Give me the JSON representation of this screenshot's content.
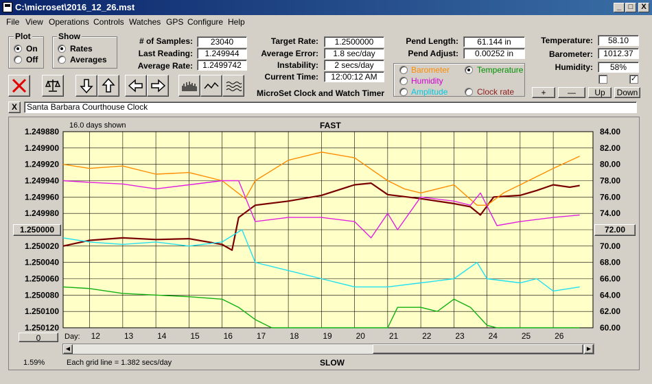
{
  "window": {
    "title": "C:\\microset\\2016_12_26.mst",
    "min_label": "_",
    "max_label": "□",
    "close_label": "X"
  },
  "menu": [
    "File",
    "View",
    "Operations",
    "Controls",
    "Watches",
    "GPS",
    "Configure",
    "Help"
  ],
  "plot_group": {
    "label": "Plot",
    "on_label": "On",
    "off_label": "Off",
    "selected": "On"
  },
  "show_group": {
    "label": "Show",
    "rates_label": "Rates",
    "averages_label": "Averages",
    "selected": "Rates"
  },
  "stats": {
    "samples_label": "# of Samples:",
    "samples_value": "23040",
    "last_reading_label": "Last Reading:",
    "last_reading_value": "1.249944",
    "average_rate_label": "Average Rate:",
    "average_rate_value": "1.2499742",
    "target_rate_label": "Target Rate:",
    "target_rate_value": "1.2500000",
    "average_error_label": "Average Error:",
    "average_error_value": "1.8 sec/day",
    "instability_label": "Instability:",
    "instability_value": "2 secs/day",
    "current_time_label": "Current Time:",
    "current_time_value": "12:00:12 AM",
    "pend_length_label": "Pend Length:",
    "pend_length_value": "61.144 in",
    "pend_adjust_label": "Pend Adjust:",
    "pend_adjust_value": "0.00252 in",
    "temperature_label": "Temperature:",
    "temperature_value": "58.10",
    "barometer_label": "Barometer:",
    "barometer_value": "1012.37",
    "humidity_label": "Humidity:",
    "humidity_value": "58%"
  },
  "app_caption": "MicroSet Clock and Watch Timer",
  "sensor_options": {
    "barometer": "Barometer",
    "temperature": "Temperature",
    "humidity": "Humidity",
    "amplitude": "Amplitude",
    "clock_rate": "Clock rate",
    "selected": "Temperature"
  },
  "adjust_buttons": {
    "plus": "+",
    "minus": "—",
    "up": "Up",
    "down": "Down"
  },
  "checkboxes": {
    "left_checked": false,
    "right_checked": true,
    "check_mark": "✓"
  },
  "watch": {
    "close_label": "X",
    "name": "Santa Barbara Courthouse Clock"
  },
  "colors": {
    "plot_bg": "#ffffc8",
    "grid": "#000000",
    "rate": "#7a0000",
    "barometer": "#ff8c00",
    "humidity": "#e020e0",
    "amplitude": "#20e0f0",
    "temperature": "#10b010",
    "temp_label": "#009000"
  },
  "chart_data": {
    "type": "line",
    "days_shown": "16.0 days shown",
    "top_label": "FAST",
    "bottom_label": "SLOW",
    "grid_note": "Each grid line = 1.382 secs/day",
    "left_percent": "1.59%",
    "left_center_button": "1.250000",
    "right_center_button": "72.00",
    "bottom_left_button": "0",
    "x_axis_title": "Day:",
    "x_ticks": [
      "12",
      "13",
      "14",
      "15",
      "16",
      "17",
      "18",
      "19",
      "20",
      "21",
      "22",
      "23",
      "24",
      "25",
      "26"
    ],
    "x_tick_days": [
      12,
      13,
      14,
      15,
      16,
      17,
      18,
      19,
      20,
      21,
      22,
      23,
      24,
      25,
      26
    ],
    "xlim": [
      11.2,
      27.2
    ],
    "y_left_ticks": [
      "1.249880",
      "1.249900",
      "1.249920",
      "1.249940",
      "1.249960",
      "1.249980",
      "1.250020",
      "1.250040",
      "1.250060",
      "1.250080",
      "1.250100",
      "1.250120"
    ],
    "y_left_lim": [
      1.24988,
      1.25012
    ],
    "y_left_inverted": true,
    "y_right_ticks": [
      "84.00",
      "82.00",
      "80.00",
      "78.00",
      "76.00",
      "74.00",
      "70.00",
      "68.00",
      "66.00",
      "64.00",
      "62.00",
      "60.00"
    ],
    "y_right_lim": [
      60,
      84
    ],
    "series": [
      {
        "key": "rate",
        "axis": "left",
        "x": [
          11.2,
          12,
          13,
          14,
          15,
          16,
          16.3,
          16.5,
          17,
          18,
          19,
          20,
          20.5,
          21,
          22,
          23,
          23.5,
          23.8,
          24.2,
          25,
          25.5,
          26,
          26.5,
          26.8
        ],
        "y": [
          1.25002,
          1.250013,
          1.25001,
          1.250012,
          1.250011,
          1.250018,
          1.250025,
          1.249985,
          1.24997,
          1.249965,
          1.249958,
          1.249945,
          1.249943,
          1.249957,
          1.249962,
          1.249968,
          1.249972,
          1.249982,
          1.24996,
          1.249958,
          1.249952,
          1.249945,
          1.249948,
          1.249946
        ]
      },
      {
        "key": "barometer",
        "axis": "right",
        "x": [
          11.2,
          12,
          13,
          14,
          15,
          16,
          16.7,
          17,
          18,
          19,
          20,
          21,
          21.5,
          22,
          23,
          23.7,
          24,
          24.5,
          25,
          26,
          26.8
        ],
        "y": [
          80.0,
          79.5,
          79.8,
          78.8,
          79.0,
          78.0,
          75.8,
          78.0,
          80.5,
          81.5,
          80.8,
          78.0,
          77.0,
          76.5,
          77.5,
          75.0,
          75.0,
          76.5,
          77.5,
          79.5,
          81.0
        ]
      },
      {
        "key": "humidity",
        "axis": "right",
        "x": [
          11.2,
          12,
          13,
          14,
          15,
          16,
          16.5,
          17,
          18,
          19,
          20,
          20.5,
          21,
          21.3,
          22,
          23,
          23.5,
          23.8,
          24.3,
          25,
          26,
          26.8
        ],
        "y": [
          78.0,
          77.8,
          77.6,
          77.0,
          77.5,
          78.0,
          78.0,
          73.0,
          73.5,
          73.5,
          73.0,
          71.0,
          74.0,
          72.0,
          76.0,
          75.5,
          75.0,
          76.5,
          72.5,
          73.0,
          73.5,
          73.8
        ]
      },
      {
        "key": "amplitude",
        "axis": "right",
        "x": [
          11.2,
          12,
          13,
          14,
          15,
          16,
          16.6,
          17,
          18,
          19,
          20,
          21,
          22,
          23,
          23.7,
          24,
          25,
          25.5,
          26,
          26.8
        ],
        "y": [
          71.0,
          70.5,
          70.2,
          70.5,
          70.0,
          70.5,
          72.0,
          68.0,
          67.0,
          66.0,
          65.0,
          65.0,
          65.5,
          66.0,
          68.0,
          66.0,
          65.5,
          66.0,
          64.5,
          65.0
        ]
      },
      {
        "key": "temperature",
        "axis": "right",
        "x": [
          11.2,
          12,
          13,
          14,
          15,
          16,
          16.5,
          17,
          17.5,
          18,
          21,
          21.3,
          22,
          22.5,
          23,
          23.5,
          24,
          24.3,
          26.8
        ],
        "y": [
          65.0,
          64.8,
          64.2,
          64.0,
          63.8,
          63.5,
          62.5,
          61.0,
          60.0,
          60.0,
          60.0,
          62.5,
          62.5,
          62.0,
          63.5,
          62.5,
          60.3,
          60.0,
          60.0
        ]
      }
    ]
  }
}
